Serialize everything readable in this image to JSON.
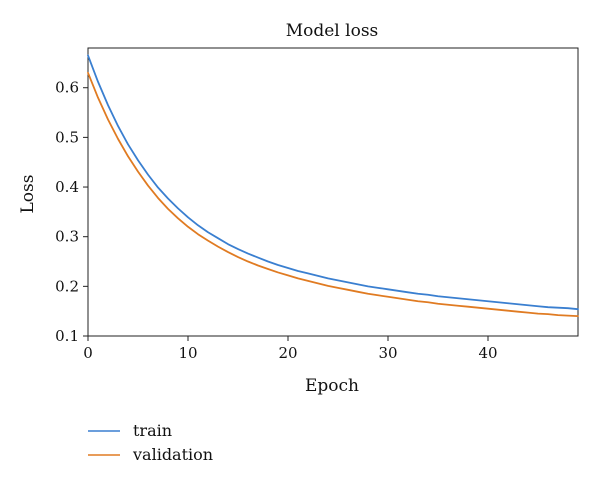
{
  "chart_data": {
    "type": "line",
    "title": "Model loss",
    "xlabel": "Epoch",
    "ylabel": "Loss",
    "xlim": [
      0,
      49
    ],
    "ylim": [
      0.1,
      0.68
    ],
    "xticks": [
      0,
      10,
      20,
      30,
      40
    ],
    "yticks": [
      0.1,
      0.2,
      0.3,
      0.4,
      0.5,
      0.6
    ],
    "grid": false,
    "legend_position": "bottom-left, below plot",
    "series": [
      {
        "name": "train",
        "color": "#3a7fd0",
        "x": [
          0,
          1,
          2,
          3,
          4,
          5,
          6,
          7,
          8,
          9,
          10,
          11,
          12,
          13,
          14,
          15,
          16,
          17,
          18,
          19,
          20,
          21,
          22,
          23,
          24,
          25,
          26,
          27,
          28,
          29,
          30,
          31,
          32,
          33,
          34,
          35,
          36,
          37,
          38,
          39,
          40,
          41,
          42,
          43,
          44,
          45,
          46,
          47,
          48,
          49
        ],
        "values": [
          0.665,
          0.612,
          0.565,
          0.523,
          0.486,
          0.454,
          0.425,
          0.399,
          0.377,
          0.357,
          0.339,
          0.323,
          0.309,
          0.297,
          0.285,
          0.275,
          0.266,
          0.258,
          0.25,
          0.243,
          0.237,
          0.231,
          0.226,
          0.221,
          0.216,
          0.212,
          0.208,
          0.204,
          0.2,
          0.197,
          0.194,
          0.191,
          0.188,
          0.185,
          0.183,
          0.18,
          0.178,
          0.176,
          0.174,
          0.172,
          0.17,
          0.168,
          0.166,
          0.164,
          0.162,
          0.16,
          0.158,
          0.157,
          0.156,
          0.154
        ]
      },
      {
        "name": "validation",
        "color": "#e07b22",
        "x": [
          0,
          1,
          2,
          3,
          4,
          5,
          6,
          7,
          8,
          9,
          10,
          11,
          12,
          13,
          14,
          15,
          16,
          17,
          18,
          19,
          20,
          21,
          22,
          23,
          24,
          25,
          26,
          27,
          28,
          29,
          30,
          31,
          32,
          33,
          34,
          35,
          36,
          37,
          38,
          39,
          40,
          41,
          42,
          43,
          44,
          45,
          46,
          47,
          48,
          49
        ],
        "values": [
          0.63,
          0.58,
          0.536,
          0.497,
          0.462,
          0.431,
          0.403,
          0.378,
          0.356,
          0.337,
          0.32,
          0.305,
          0.292,
          0.28,
          0.269,
          0.259,
          0.25,
          0.242,
          0.235,
          0.228,
          0.222,
          0.216,
          0.211,
          0.206,
          0.201,
          0.197,
          0.193,
          0.189,
          0.185,
          0.182,
          0.179,
          0.176,
          0.173,
          0.17,
          0.168,
          0.165,
          0.163,
          0.161,
          0.159,
          0.157,
          0.155,
          0.153,
          0.151,
          0.149,
          0.147,
          0.145,
          0.144,
          0.142,
          0.141,
          0.14
        ]
      }
    ]
  }
}
